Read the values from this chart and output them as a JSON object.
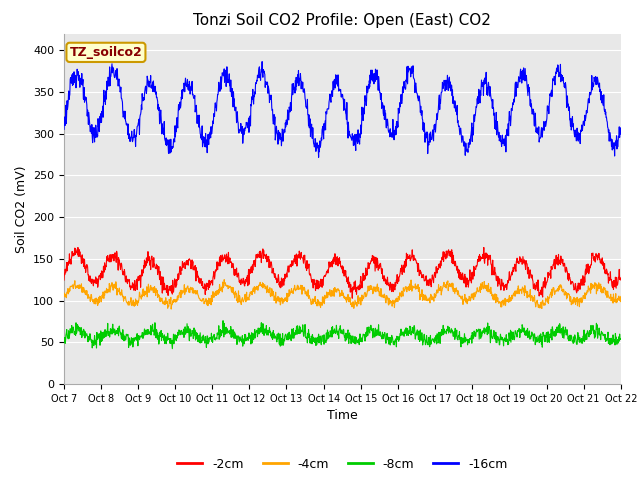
{
  "title": "Tonzi Soil CO2 Profile: Open (East) CO2",
  "ylabel": "Soil CO2 (mV)",
  "xlabel": "Time",
  "legend_label": "TZ_soilco2",
  "series_labels": [
    "-2cm",
    "-4cm",
    "-8cm",
    "-16cm"
  ],
  "series_colors": [
    "#ff0000",
    "#ffa500",
    "#00cc00",
    "#0000ff"
  ],
  "ylim": [
    0,
    420
  ],
  "yticks": [
    0,
    50,
    100,
    150,
    200,
    250,
    300,
    350,
    400
  ],
  "n_points": 1440,
  "n_days": 15,
  "xtick_labels": [
    "Oct 7",
    "Oct 8",
    "Oct 9",
    "Oct 10",
    "Oct 11",
    "Oct 12",
    "Oct 13",
    "Oct 14",
    "Oct 15",
    "Oct 16",
    "Oct 17",
    "Oct 18",
    "Oct 19",
    "Oct 20",
    "Oct 21",
    "Oct 22"
  ],
  "bg_color": "#e8e8e8",
  "box_facecolor": "#ffffcc",
  "box_edgecolor": "#cc9900",
  "title_fontsize": 11,
  "axis_label_fontsize": 9,
  "tick_fontsize": 8,
  "legend_text_color": "#880000",
  "line_width": 0.8,
  "grid_color": "#ffffff",
  "fig_facecolor": "#ffffff"
}
